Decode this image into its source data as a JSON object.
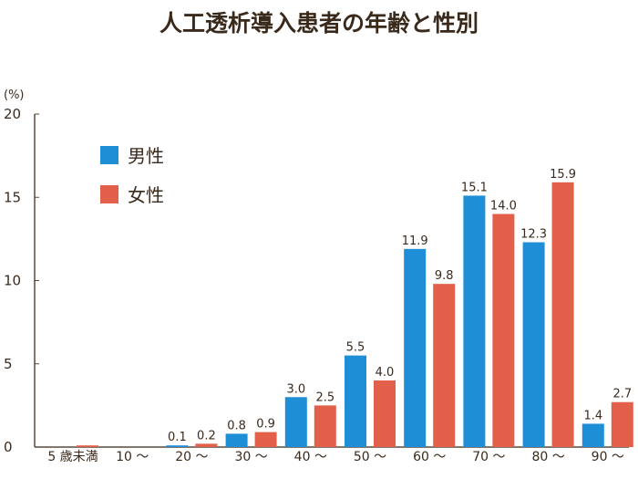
{
  "chart_data": {
    "type": "bar",
    "title": "人工透析導入患者の年齢と性別",
    "ylabel": "(%)",
    "xlabel": "",
    "ylim": [
      0,
      20
    ],
    "yticks": [
      "0",
      "5",
      "10",
      "15",
      "20"
    ],
    "categories": [
      "5 歳未満",
      "10 ～",
      "20 ～",
      "30 ～",
      "40 ～",
      "50 ～",
      "60 ～",
      "70 ～",
      "80 ～",
      "90 ～"
    ],
    "series": [
      {
        "name": "男性",
        "color": "#1e8ed6",
        "values": [
          0,
          0,
          0.1,
          0.8,
          3.0,
          5.5,
          11.9,
          15.1,
          12.3,
          1.4
        ],
        "labels": [
          "",
          "",
          "0.1",
          "0.8",
          "3.0",
          "5.5",
          "11.9",
          "15.1",
          "12.3",
          "1.4"
        ]
      },
      {
        "name": "女性",
        "color": "#e2604a",
        "values": [
          0.1,
          0,
          0.2,
          0.9,
          2.5,
          4.0,
          9.8,
          14.0,
          15.9,
          2.7
        ],
        "labels": [
          "",
          "",
          "0.2",
          "0.9",
          "2.5",
          "4.0",
          "9.8",
          "14.0",
          "15.9",
          "2.7"
        ]
      }
    ],
    "legend": "top-left"
  }
}
